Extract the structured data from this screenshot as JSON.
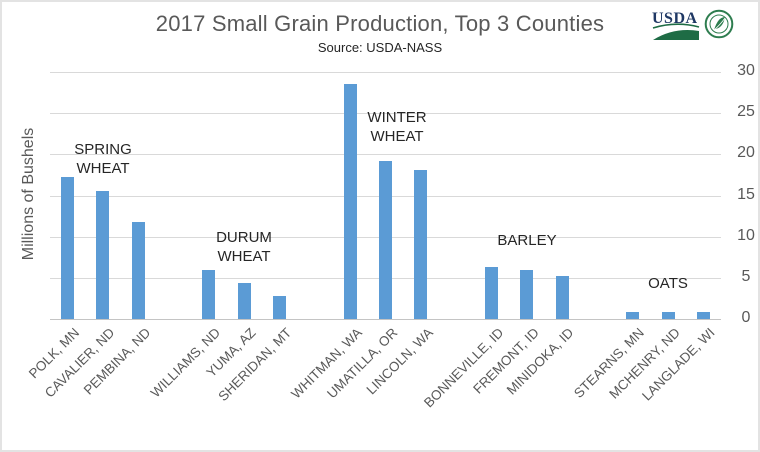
{
  "chart_data": {
    "type": "bar",
    "title": "2017 Small Grain Production, Top 3 Counties",
    "subtitle": "Source: USDA-NASS",
    "ylabel": "Millions of Bushels",
    "xlabel": "",
    "ylim": [
      0,
      30
    ],
    "yticks": [
      0,
      5,
      10,
      15,
      20,
      25,
      30
    ],
    "grid": true,
    "legend": "none",
    "value_axis_side": "right",
    "bar_color": "#5b9bd5",
    "gridline_color": "#d9d9d9",
    "axis_label_color": "#595959",
    "categories": [
      "POLK, MN",
      "CAVALIER, ND",
      "PEMBINA, ND",
      "WILLIAMS, ND",
      "YUMA, AZ",
      "SHERIDAN, MT",
      "WHITMAN, WA",
      "UMATILLA, OR",
      "LINCOLN, WA",
      "BONNEVILLE, ID",
      "FREMONT, ID",
      "MINIDOKA, ID",
      "STEARNS, MN",
      "MCHENRY, ND",
      "LANGLADE, WI"
    ],
    "values": [
      17.2,
      15.6,
      11.8,
      6.0,
      4.4,
      2.8,
      28.6,
      19.2,
      18.1,
      6.3,
      6.0,
      5.2,
      0.9,
      0.8,
      0.8
    ],
    "group_annotations": [
      {
        "text": "SPRING WHEAT",
        "lines": [
          "SPRING",
          "WHEAT"
        ],
        "bar_indexes": [
          0,
          1,
          2
        ]
      },
      {
        "text": "DURUM WHEAT",
        "lines": [
          "DURUM",
          "WHEAT"
        ],
        "bar_indexes": [
          3,
          4,
          5
        ]
      },
      {
        "text": "WINTER WHEAT",
        "lines": [
          "WINTER",
          "WHEAT"
        ],
        "bar_indexes": [
          6,
          7,
          8
        ]
      },
      {
        "text": "BARLEY",
        "lines": [
          "BARLEY"
        ],
        "bar_indexes": [
          9,
          10,
          11
        ]
      },
      {
        "text": "OATS",
        "lines": [
          "OATS"
        ],
        "bar_indexes": [
          12,
          13,
          14
        ]
      }
    ]
  },
  "logos": {
    "usda_wordmark": "USDA"
  }
}
